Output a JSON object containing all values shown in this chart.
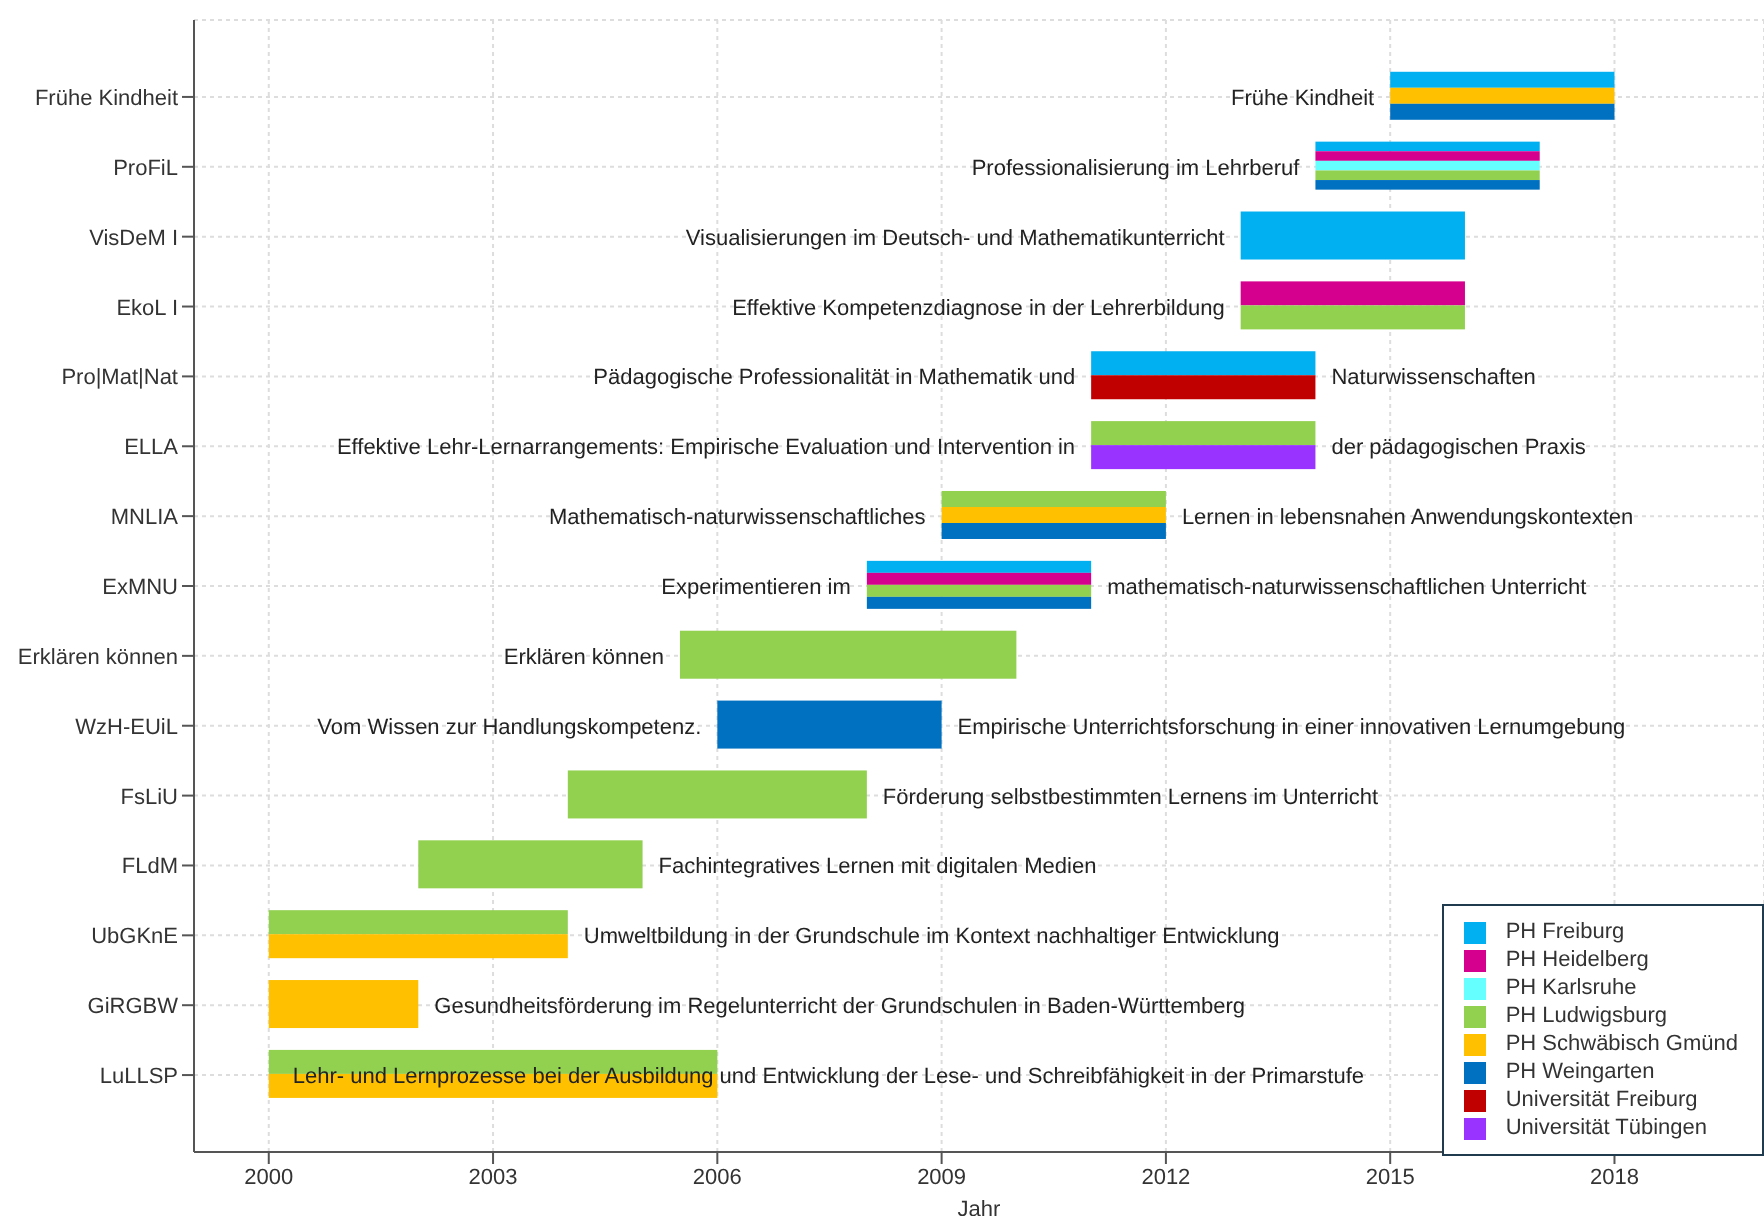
{
  "chart_data": {
    "type": "bar",
    "orientation": "horizontal",
    "xlabel": "Jahr",
    "xlim": [
      1999,
      2020
    ],
    "xticks": [
      2000,
      2003,
      2006,
      2009,
      2012,
      2015,
      2018
    ],
    "grid": true,
    "legend": "bottom right",
    "categories": [
      "Frühe Kindheit",
      "ProFiL",
      "VisDeM I",
      "EkoL I",
      "Pro|Mat|Nat",
      "ELLA",
      "MNLIA",
      "ExMNU",
      "Erklären können",
      "WzH-EUiL",
      "FsLiU",
      "FLdM",
      "UbGKnE",
      "GiRGBW",
      "LuLLSP"
    ],
    "series": [
      {
        "name": "PH Freiburg",
        "color": "#00b0f0",
        "base": [
          2015,
          2014,
          2013,
          null,
          2011,
          null,
          null,
          2008,
          null,
          null,
          null,
          null,
          null,
          null,
          null
        ],
        "values": [
          3,
          3,
          3,
          null,
          3,
          null,
          null,
          3,
          null,
          null,
          null,
          null,
          null,
          null,
          null
        ]
      },
      {
        "name": "PH Heidelberg",
        "color": "#d6008f",
        "base": [
          null,
          2014,
          null,
          2013,
          null,
          null,
          null,
          2008,
          null,
          null,
          null,
          null,
          null,
          null,
          null
        ],
        "values": [
          null,
          3,
          null,
          3,
          null,
          null,
          null,
          3,
          null,
          null,
          null,
          null,
          null,
          null,
          null
        ]
      },
      {
        "name": "PH Karlsruhe",
        "color": "#66ffff",
        "base": [
          null,
          2014,
          null,
          null,
          null,
          null,
          null,
          null,
          null,
          null,
          null,
          null,
          null,
          null,
          null
        ],
        "values": [
          null,
          3,
          null,
          null,
          null,
          null,
          null,
          null,
          null,
          null,
          null,
          null,
          null,
          null,
          null
        ]
      },
      {
        "name": "PH Ludwigsburg",
        "color": "#92d050",
        "base": [
          null,
          2014,
          null,
          2013,
          null,
          2011,
          2009,
          2008,
          2005.5,
          null,
          2004,
          2002,
          2000,
          null,
          2000
        ],
        "values": [
          null,
          3,
          null,
          3,
          null,
          3,
          3,
          3,
          4.5,
          null,
          4,
          3,
          4,
          null,
          6
        ]
      },
      {
        "name": "PH Schwäbisch Gmünd",
        "color": "#ffc000",
        "base": [
          2015,
          null,
          null,
          null,
          null,
          null,
          2009,
          null,
          null,
          null,
          null,
          null,
          2000,
          2000,
          2000
        ],
        "values": [
          3,
          null,
          null,
          null,
          null,
          null,
          3,
          null,
          null,
          null,
          null,
          null,
          4,
          2,
          6
        ]
      },
      {
        "name": "PH Weingarten",
        "color": "#0070c0",
        "base": [
          2015,
          2014,
          null,
          null,
          null,
          null,
          2009,
          2008,
          null,
          2006,
          null,
          null,
          null,
          null,
          null
        ],
        "values": [
          3,
          3,
          null,
          null,
          null,
          null,
          3,
          3,
          null,
          3,
          null,
          null,
          null,
          null,
          null
        ]
      },
      {
        "name": "Universität Freiburg",
        "color": "#c00000",
        "base": [
          null,
          null,
          null,
          null,
          2011,
          null,
          null,
          null,
          null,
          null,
          null,
          null,
          null,
          null,
          null
        ],
        "values": [
          null,
          null,
          null,
          null,
          3,
          null,
          null,
          null,
          null,
          null,
          null,
          null,
          null,
          null,
          null
        ]
      },
      {
        "name": "Universität Tübingen",
        "color": "#9933ff",
        "base": [
          null,
          null,
          null,
          null,
          null,
          2011,
          null,
          null,
          null,
          null,
          null,
          null,
          null,
          null,
          null
        ],
        "values": [
          null,
          null,
          null,
          null,
          null,
          3,
          null,
          null,
          null,
          null,
          null,
          null,
          null,
          null,
          null
        ]
      }
    ],
    "annotations": [
      {
        "text": "Frühe Kindheit",
        "x": 2015,
        "y": "Frühe Kindheit"
      },
      {
        "text": "Professionalisierung im Lehrberuf",
        "x": 2014,
        "y": "ProFiL"
      },
      {
        "text": "Visualisierungen im Deutsch- und Mathematikunterricht",
        "x": 2013,
        "y": "VisDeM I"
      },
      {
        "text": "Effektive Kompetenzdiagnose in der Lehrerbildung",
        "x": 2013,
        "y": "EkoL I"
      },
      {
        "text": "Pädagogische Professionalität in Mathematik und",
        "x": 2011,
        "y": "Pro|Mat|Nat"
      },
      {
        "text": "Naturwissenschaften",
        "x": 2014,
        "y": "Pro|Mat|Nat"
      },
      {
        "text": "Effektive Lehr-Lernarrangements: Empirische Evaluation und Intervention in",
        "x": 2011,
        "y": "ELLA"
      },
      {
        "text": "der pädagogischen Praxis",
        "x": 2014,
        "y": "ELLA"
      },
      {
        "text": "Mathematisch-naturwissenschaftliches",
        "x": 2009,
        "y": "MNLIA"
      },
      {
        "text": "Lernen in lebensnahen Anwendungskontexten",
        "x": 2012,
        "y": "MNLIA"
      },
      {
        "text": "Experimentieren im",
        "x": 2008,
        "y": "ExMNU"
      },
      {
        "text": "mathematisch-naturwissenschaftlichen Unterricht",
        "x": 2011,
        "y": "ExMNU"
      },
      {
        "text": "Erklären können",
        "x": 2005.5,
        "y": "Erklären können"
      },
      {
        "text": "Vom Wissen zur Handlungskompetenz.",
        "x": 2006,
        "y": "WzH-EUiL"
      },
      {
        "text": "Empirische Unterrichtsforschung in einer innovativen Lernumgebung",
        "x": 2009,
        "y": "WzH-EUiL"
      },
      {
        "text": "Förderung selbstbestimmten Lernens im Unterricht",
        "x": 2008,
        "y": "FsLiU"
      },
      {
        "text": "Fachintegratives Lernen mit digitalen Medien",
        "x": 2005,
        "y": "FLdM"
      },
      {
        "text": "Umweltbildung in der Grundschule im Kontext nachhaltiger Entwicklung",
        "x": 2004,
        "y": "UbGKnE"
      },
      {
        "text": "Gesundheitsförderung im Regelunterricht der Grundschulen in Baden-Württemberg",
        "x": 2002,
        "y": "GiRGBW"
      },
      {
        "text": "Lehr- und Lernprozesse bei der Ausbildung und Entwicklung der Lese- und Schreibfähigkeit in der Primarstufe",
        "x": 2000,
        "y": "LuLLSP"
      }
    ]
  }
}
